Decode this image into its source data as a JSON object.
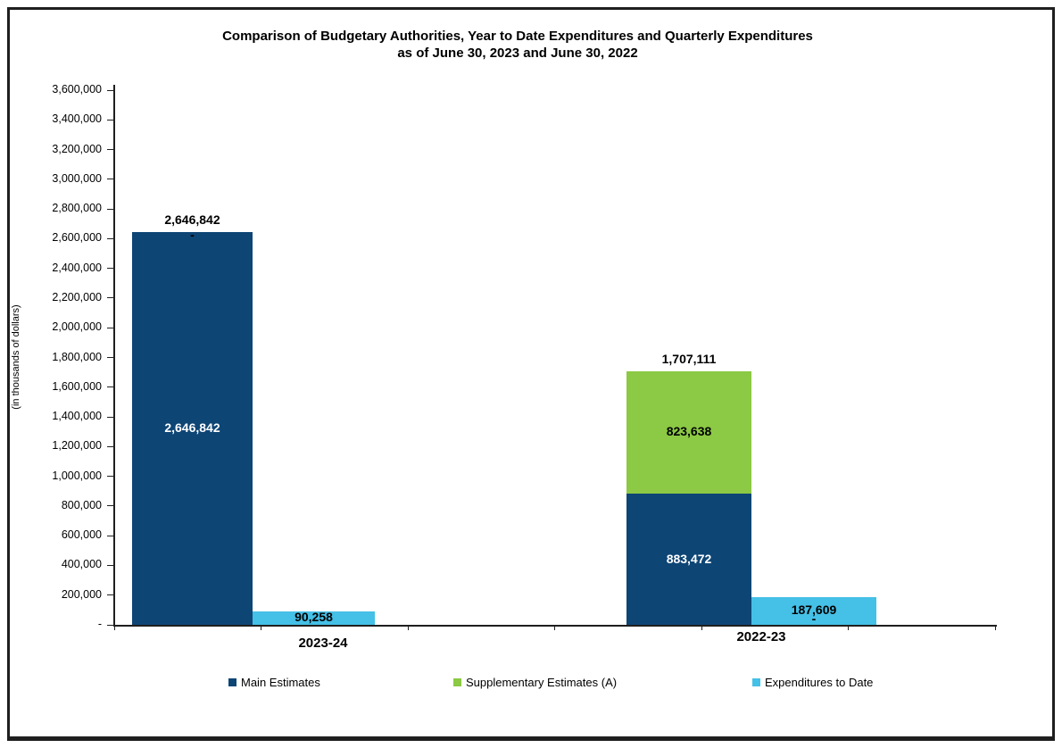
{
  "title": {
    "line1": "Comparison of Budgetary Authorities, Year to Date Expenditures and Quarterly Expenditures",
    "line2": "as of June 30, 2023 and June 30, 2022"
  },
  "y_axis_title": "(in thousands of dollars)",
  "legend": {
    "items": [
      {
        "label": "Main Estimates",
        "color": "#0D4575"
      },
      {
        "label": "Supplementary Estimates (A)",
        "color": "#8CC944"
      },
      {
        "label": "Expenditures to Date",
        "color": "#45C0E6"
      }
    ]
  },
  "chart_data": {
    "type": "bar",
    "stacked": true,
    "title": "Comparison of Budgetary Authorities, Year to Date Expenditures and Quarterly Expenditures as of June 30, 2023 and June 30, 2022",
    "categories": [
      "2023-24",
      "2022-23"
    ],
    "series": [
      {
        "name": "Main Estimates",
        "color": "#0D4575",
        "values": [
          2646842,
          883472
        ],
        "labels": [
          "2,646,842",
          "883,472"
        ],
        "label_color": "#FFFFFF"
      },
      {
        "name": "Supplementary Estimates (A)",
        "color": "#8CC944",
        "values": [
          0,
          823638
        ],
        "labels": [
          "-",
          "823,638"
        ],
        "label_color": "#000000"
      },
      {
        "name": "Expenditures to Date",
        "color": "#45C0E6",
        "values": [
          90258,
          187609
        ],
        "labels": [
          "90,258",
          "187,609"
        ],
        "zero_labels": [
          "",
          "-"
        ],
        "label_color": "#000000"
      }
    ],
    "stack_totals": {
      "values": [
        2646842,
        1707111
      ],
      "labels": [
        "2,646,842",
        "1,707,111"
      ]
    },
    "xlabel": "",
    "ylabel": "(in thousands of dollars)",
    "ylim": [
      0,
      3600000
    ],
    "ytick_step": 200000,
    "ytick_labels": [
      "-",
      "200,000",
      "400,000",
      "600,000",
      "800,000",
      "1,000,000",
      "1,200,000",
      "1,400,000",
      "1,600,000",
      "1,800,000",
      "2,000,000",
      "2,200,000",
      "2,400,000",
      "2,600,000",
      "2,800,000",
      "3,000,000",
      "3,200,000",
      "3,400,000",
      "3,600,000"
    ],
    "grid": false,
    "legend_position": "bottom"
  }
}
